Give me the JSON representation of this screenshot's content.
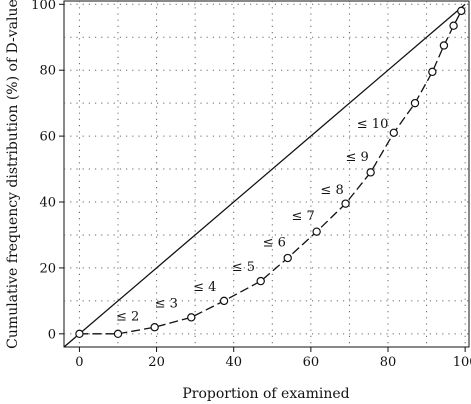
{
  "chart_data": {
    "type": "line",
    "title": "",
    "xlabel": "Proportion of examined",
    "ylabel": "Cumulative frequency distribution (%) of D-value",
    "xlim": [
      -4,
      101
    ],
    "ylim": [
      -4,
      101
    ],
    "xticks": [
      0,
      20,
      40,
      60,
      80,
      100
    ],
    "yticks": [
      0,
      20,
      40,
      60,
      80,
      100
    ],
    "grid": true,
    "grid_style": "dotted",
    "series": [
      {
        "style": "dashed line with open circle markers",
        "x": [
          0,
          10,
          19.5,
          29,
          37.5,
          47,
          54,
          61.5,
          69,
          75.5,
          81.5,
          87,
          91.5,
          94.5,
          97,
          99
        ],
        "y": [
          0,
          0,
          2,
          5,
          10,
          16,
          23,
          31,
          39.5,
          49,
          61,
          70,
          79.5,
          87.5,
          93.5,
          98
        ]
      },
      {
        "style": "solid reference line",
        "x": [
          -4,
          100
        ],
        "y": [
          -4,
          100
        ]
      }
    ],
    "annotations": [
      {
        "text": "≤ 2",
        "x": 12.5,
        "y": 4
      },
      {
        "text": "≤ 3",
        "x": 22.5,
        "y": 8
      },
      {
        "text": "≤ 4",
        "x": 32.5,
        "y": 13
      },
      {
        "text": "≤ 5",
        "x": 42.5,
        "y": 19
      },
      {
        "text": "≤ 6",
        "x": 50.5,
        "y": 26.5
      },
      {
        "text": "≤ 7",
        "x": 58,
        "y": 34.5
      },
      {
        "text": "≤ 8",
        "x": 65.5,
        "y": 42.5
      },
      {
        "text": "≤ 9",
        "x": 72,
        "y": 52.5
      },
      {
        "text": "≤ 10",
        "x": 76,
        "y": 62.5
      }
    ]
  }
}
